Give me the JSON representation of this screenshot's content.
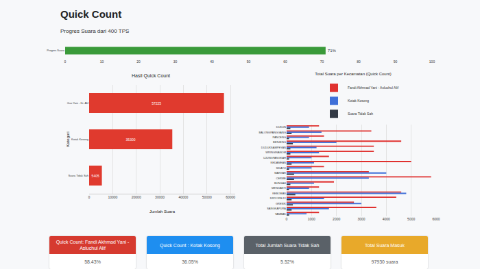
{
  "header": {
    "title": "Quick Count",
    "subtitle": "Progres Suara dari 400 TPS"
  },
  "chart_data": [
    {
      "type": "bar",
      "orientation": "horizontal",
      "categories": [
        "Progres Suara"
      ],
      "values": [
        71
      ],
      "value_labels": [
        "71%"
      ],
      "data_labels": true,
      "color": "#3a9a3a",
      "xlim": [
        0,
        100
      ],
      "xticks": [
        0,
        10,
        20,
        30,
        40,
        50,
        60,
        70,
        80,
        90,
        100
      ],
      "grid": false
    },
    {
      "type": "bar",
      "title": "Hasil Quick Count",
      "orientation": "horizontal",
      "categories": [
        "Gus Yani - Dr. Alif",
        "Kotak Kosong",
        "Suara Tidak Sah"
      ],
      "values": [
        57225,
        35300,
        5405
      ],
      "data_labels": true,
      "color": "#e03a2e",
      "xlabel": "Jumlah Suara",
      "ylabel": "Kategori",
      "xlim": [
        0,
        62000
      ],
      "xticks": [
        0,
        10000,
        20000,
        30000,
        40000,
        50000,
        60000
      ],
      "grid": true
    },
    {
      "type": "bar",
      "title": "Total Suara per Kecamatan (Quick Count)",
      "orientation": "horizontal",
      "categories": [
        "DUKUN",
        "BALONGPANGGANG",
        "PANCENG",
        "BENJENG",
        "DUDUKSAMPEYAN",
        "WRINGINANOM",
        "UJUNGPANGKAH",
        "KEDAMEAN",
        "SIDAYU",
        "MANYAR",
        "CERME",
        "BUNGAH",
        "MENGANTI",
        "KEBOMAS",
        "DRIYOREJO",
        "GRESIK",
        "SANGKAPURA",
        "TAMBAK"
      ],
      "series": [
        {
          "name": "Fandi Akhmad Yani - Asluchul Alif",
          "color": "#e0312f",
          "values": [
            1300,
            3400,
            1500,
            4600,
            3500,
            3500,
            1700,
            5000,
            1500,
            3300,
            5800,
            1900,
            1300,
            4600,
            4400,
            2700,
            3600,
            1300
          ]
        },
        {
          "name": "Kotak Kosong",
          "color": "#3f6fd8",
          "values": [
            900,
            1400,
            900,
            2000,
            1200,
            1300,
            1000,
            1100,
            1000,
            4000,
            3300,
            1100,
            900,
            4800,
            1500,
            3000,
            1700,
            800
          ]
        },
        {
          "name": "Suara Tidak Sah",
          "color": "#333a45",
          "values": [
            150,
            200,
            100,
            250,
            150,
            150,
            100,
            200,
            100,
            300,
            300,
            150,
            100,
            350,
            200,
            250,
            200,
            100
          ]
        }
      ],
      "xlim": [
        0,
        6000
      ],
      "xticks": [
        0,
        1000,
        2000,
        3000,
        4000,
        5000,
        6000
      ],
      "grid": true,
      "legend": "top"
    }
  ],
  "cards": [
    {
      "title": "Quick Count: Fandi Akhmad Yani - Asluchul Alif",
      "value": "58.43%",
      "color": "#d63a2f"
    },
    {
      "title": "Quick Count : Kotak Kosong",
      "value": "36.05%",
      "color": "#1e8ef0"
    },
    {
      "title": "Total Jumlah Suara Tidak Sah",
      "value": "5.52%",
      "color": "#5a6168"
    },
    {
      "title": "Total Suara Masuk",
      "value": "97930 suara",
      "color": "#e8a92a"
    }
  ]
}
